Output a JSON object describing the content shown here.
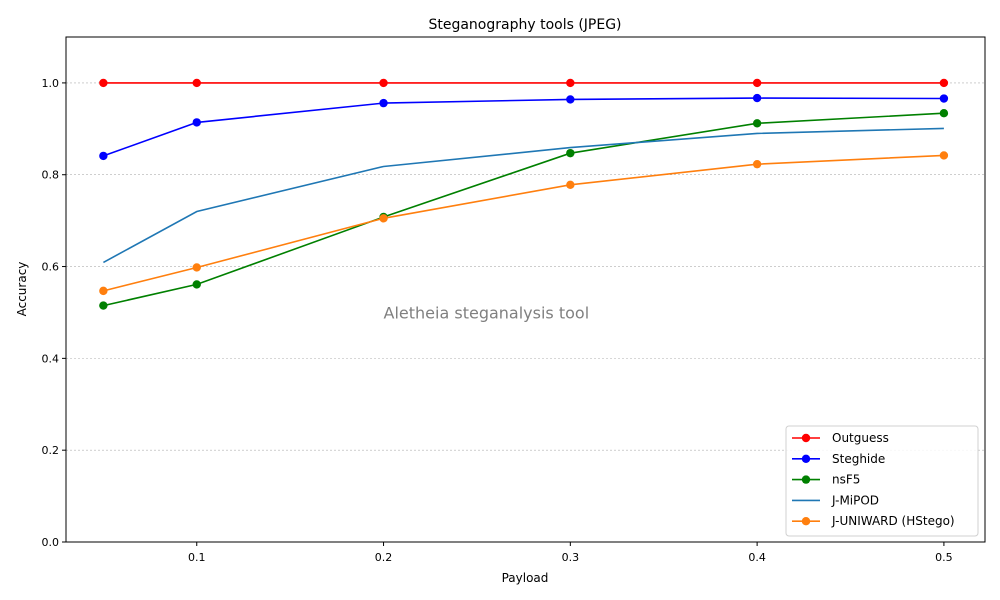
{
  "chart_data": {
    "type": "line",
    "title": "Steganography tools (JPEG)",
    "xlabel": "Payload",
    "ylabel": "Accuracy",
    "xlim": [
      0.03,
      0.522
    ],
    "ylim": [
      0.0,
      1.1
    ],
    "x_ticks": [
      0.1,
      0.2,
      0.3,
      0.4,
      0.5
    ],
    "x_tick_labels": [
      "0.1",
      "0.2",
      "0.3",
      "0.4",
      "0.5"
    ],
    "y_ticks": [
      0.0,
      0.2,
      0.4,
      0.6,
      0.8,
      1.0
    ],
    "y_tick_labels": [
      "0.0",
      "0.2",
      "0.4",
      "0.6",
      "0.8",
      "1.0"
    ],
    "grid": "horizontal-dashed",
    "legend_position": "lower-right",
    "annotation": "Aletheia steganalysis tool",
    "annotation_at": [
      0.2,
      0.5
    ],
    "x": [
      0.05,
      0.1,
      0.2,
      0.3,
      0.4,
      0.5
    ],
    "series": [
      {
        "name": "Outguess",
        "color": "#ff0000",
        "marker": true,
        "values": [
          1.0,
          1.0,
          1.0,
          1.0,
          1.0,
          1.0
        ]
      },
      {
        "name": "Steghide",
        "color": "#0000ff",
        "marker": true,
        "values": [
          0.841,
          0.914,
          0.956,
          0.964,
          0.967,
          0.966
        ]
      },
      {
        "name": "nsF5",
        "color": "#008000",
        "marker": true,
        "values": [
          0.515,
          0.561,
          0.708,
          0.847,
          0.912,
          0.934
        ]
      },
      {
        "name": "J-MiPOD",
        "color": "#1f77b4",
        "marker": false,
        "values": [
          0.609,
          0.72,
          0.818,
          0.859,
          0.89,
          0.901
        ]
      },
      {
        "name": "J-UNIWARD (HStego)",
        "color": "#ff7f0e",
        "marker": true,
        "values": [
          0.547,
          0.598,
          0.705,
          0.778,
          0.823,
          0.842
        ]
      }
    ]
  }
}
